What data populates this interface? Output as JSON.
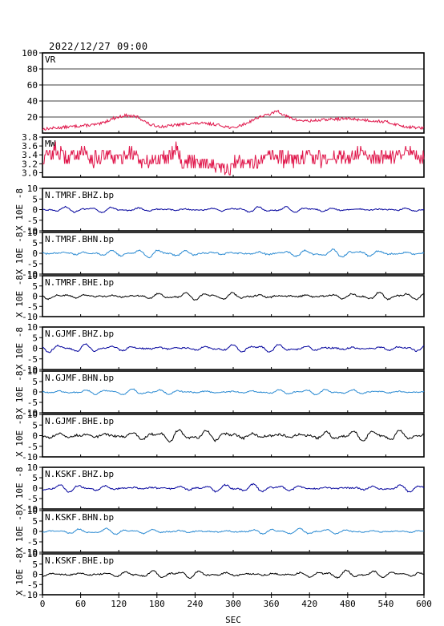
{
  "title": "2022/12/27 09:00",
  "xlabel": "SEC",
  "colors": {
    "vr_line": "#e0184c",
    "mw_line": "#e0184c",
    "bhz_line": "#00009c",
    "bhn_line": "#2a8ad2",
    "bhe_line": "#000000",
    "frame": "#000000"
  },
  "chart_data": [
    {
      "type": "line",
      "id": "vr",
      "ylabel": "",
      "channel": "VR",
      "xlim": [
        0,
        600
      ],
      "ylim": [
        0,
        100
      ],
      "y_ticks": [
        100,
        80,
        60,
        40,
        20
      ],
      "grid": true,
      "series": [
        {
          "name": "VR",
          "color": "#e0184c",
          "x": [
            0,
            30,
            60,
            90,
            110,
            130,
            150,
            170,
            190,
            210,
            230,
            250,
            270,
            290,
            300,
            320,
            340,
            360,
            370,
            380,
            400,
            420,
            450,
            480,
            510,
            540,
            570,
            600
          ],
          "y": [
            5,
            7,
            9,
            11,
            18,
            22,
            20,
            10,
            8,
            10,
            12,
            12,
            11,
            8,
            6,
            12,
            20,
            24,
            28,
            22,
            16,
            15,
            17,
            18,
            16,
            14,
            8,
            6
          ]
        }
      ]
    },
    {
      "type": "line",
      "id": "mw",
      "ylabel": "",
      "channel": "MW",
      "xlim": [
        0,
        600
      ],
      "ylim": [
        2.9,
        3.8
      ],
      "y_ticks": [
        3.8,
        3.6,
        3.4,
        3.2,
        3.0
      ],
      "grid": false,
      "series": [
        {
          "name": "MW",
          "color": "#e0184c",
          "x": [
            0,
            20,
            40,
            60,
            80,
            100,
            120,
            140,
            160,
            180,
            200,
            210,
            220,
            240,
            260,
            280,
            295,
            300,
            320,
            340,
            360,
            380,
            400,
            420,
            440,
            460,
            480,
            500,
            520,
            540,
            560,
            580,
            600
          ],
          "y": [
            3.3,
            3.5,
            3.3,
            3.5,
            3.3,
            3.4,
            3.3,
            3.5,
            3.2,
            3.3,
            3.4,
            3.6,
            3.2,
            3.3,
            3.2,
            3.1,
            3.0,
            3.2,
            3.3,
            3.2,
            3.4,
            3.3,
            3.3,
            3.4,
            3.3,
            3.4,
            3.3,
            3.5,
            3.3,
            3.4,
            3.3,
            3.5,
            3.3
          ]
        }
      ]
    },
    {
      "type": "line",
      "id": "tmrf_bhz",
      "ylabel": "X 10E -8",
      "channel": "N.TMRF.BHZ.bp",
      "xlim": [
        0,
        600
      ],
      "ylim": [
        -10,
        10
      ],
      "y_ticks": [
        10,
        5,
        0,
        -5,
        -10
      ],
      "grid": false,
      "series": [
        {
          "name": "N.TMRF.BHZ.bp",
          "color": "#00009c",
          "amplitude": 1.5
        }
      ]
    },
    {
      "type": "line",
      "id": "tmrf_bhn",
      "ylabel": "X 10E -8",
      "channel": "N.TMRF.BHN.bp",
      "xlim": [
        0,
        600
      ],
      "ylim": [
        -10,
        10
      ],
      "y_ticks": [
        10,
        5,
        0,
        -5,
        -10
      ],
      "grid": false,
      "series": [
        {
          "name": "N.TMRF.BHN.bp",
          "color": "#2a8ad2",
          "amplitude": 2
        }
      ]
    },
    {
      "type": "line",
      "id": "tmrf_bhe",
      "ylabel": "X 10E -8",
      "channel": "N.TMRF.BHE.bp",
      "xlim": [
        0,
        600
      ],
      "ylim": [
        -10,
        10
      ],
      "y_ticks": [
        10,
        5,
        0,
        -5,
        -10
      ],
      "grid": false,
      "series": [
        {
          "name": "N.TMRF.BHE.bp",
          "color": "#000000",
          "amplitude": 2
        }
      ]
    },
    {
      "type": "line",
      "id": "gjmf_bhz",
      "ylabel": "X 10E -8",
      "channel": "N.GJMF.BHZ.bp",
      "xlim": [
        0,
        600
      ],
      "ylim": [
        -10,
        10
      ],
      "y_ticks": [
        10,
        5,
        0,
        -5,
        -10
      ],
      "grid": false,
      "series": [
        {
          "name": "N.GJMF.BHZ.bp",
          "color": "#00009c",
          "amplitude": 2
        }
      ]
    },
    {
      "type": "line",
      "id": "gjmf_bhn",
      "ylabel": "X 10E -8",
      "channel": "N.GJMF.BHN.bp",
      "xlim": [
        0,
        600
      ],
      "ylim": [
        -10,
        10
      ],
      "y_ticks": [
        10,
        5,
        0,
        -5,
        -10
      ],
      "grid": false,
      "series": [
        {
          "name": "N.GJMF.BHN.bp",
          "color": "#2a8ad2",
          "amplitude": 1.5
        }
      ]
    },
    {
      "type": "line",
      "id": "gjmf_bhe",
      "ylabel": "X 10E -8",
      "channel": "N.GJMF.BHE.bp",
      "xlim": [
        0,
        600
      ],
      "ylim": [
        -10,
        10
      ],
      "y_ticks": [
        10,
        5,
        0,
        -5,
        -10
      ],
      "grid": false,
      "series": [
        {
          "name": "N.GJMF.BHE.bp",
          "color": "#000000",
          "amplitude": 3
        }
      ]
    },
    {
      "type": "line",
      "id": "kskf_bhz",
      "ylabel": "X 10E -8",
      "channel": "N.KSKF.BHZ.bp",
      "xlim": [
        0,
        600
      ],
      "ylim": [
        -10,
        10
      ],
      "y_ticks": [
        10,
        5,
        0,
        -5,
        -10
      ],
      "grid": false,
      "series": [
        {
          "name": "N.KSKF.BHZ.bp",
          "color": "#00009c",
          "amplitude": 2
        }
      ]
    },
    {
      "type": "line",
      "id": "kskf_bhn",
      "ylabel": "X 10E -8",
      "channel": "N.KSKF.BHN.bp",
      "xlim": [
        0,
        600
      ],
      "ylim": [
        -10,
        10
      ],
      "y_ticks": [
        10,
        5,
        0,
        -5,
        -10
      ],
      "grid": false,
      "series": [
        {
          "name": "N.KSKF.BHN.bp",
          "color": "#2a8ad2",
          "amplitude": 1.5
        }
      ]
    },
    {
      "type": "line",
      "id": "kskf_bhe",
      "ylabel": "X 10E -8",
      "channel": "N.KSKF.BHE.bp",
      "xlim": [
        0,
        600
      ],
      "ylim": [
        -10,
        10
      ],
      "y_ticks": [
        10,
        5,
        0,
        -5,
        -10
      ],
      "grid": false,
      "series": [
        {
          "name": "N.KSKF.BHE.bp",
          "color": "#000000",
          "amplitude": 2
        }
      ]
    }
  ],
  "x_ticks": [
    0,
    60,
    120,
    180,
    240,
    300,
    360,
    420,
    480,
    540,
    600
  ]
}
